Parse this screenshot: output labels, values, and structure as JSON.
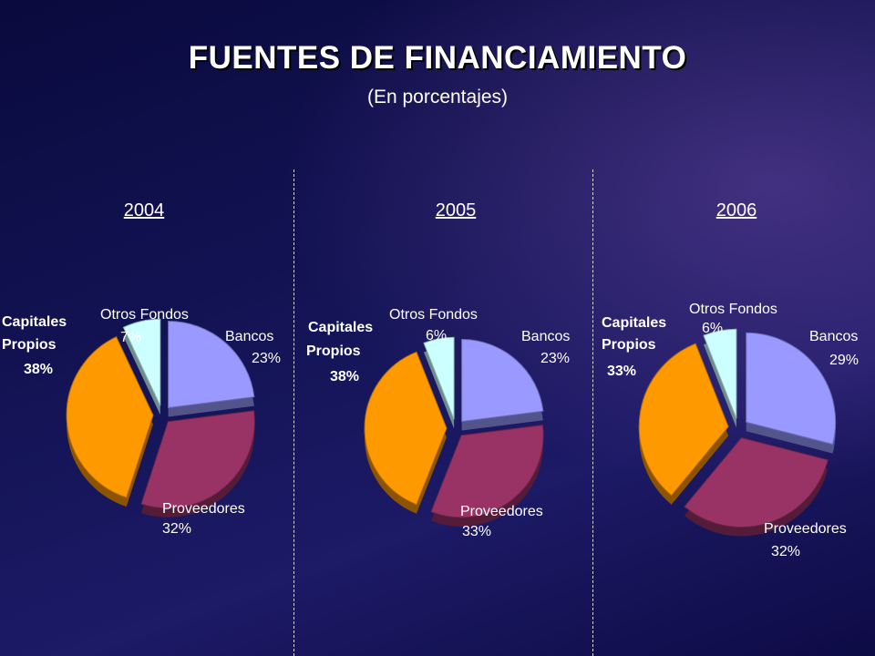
{
  "title": "FUENTES DE FINANCIAMIENTO",
  "subtitle": "(En porcentajes)",
  "chart_data": [
    {
      "type": "pie",
      "title": "2004",
      "slices": [
        {
          "label": "Bancos",
          "value": 23,
          "value_label": "23%",
          "color": "#9999ff"
        },
        {
          "label": "Proveedores",
          "value": 32,
          "value_label": "32%",
          "color": "#993366"
        },
        {
          "label": "Capitales Propios",
          "value": 38,
          "value_label": "38%",
          "color": "#ff9900"
        },
        {
          "label": "Otros Fondos",
          "value": 7,
          "value_label": "7%",
          "color": "#ccffff"
        }
      ]
    },
    {
      "type": "pie",
      "title": "2005",
      "slices": [
        {
          "label": "Bancos",
          "value": 23,
          "value_label": "23%",
          "color": "#9999ff"
        },
        {
          "label": "Proveedores",
          "value": 33,
          "value_label": "33%",
          "color": "#993366"
        },
        {
          "label": "Capitales Propios",
          "value": 38,
          "value_label": "38%",
          "color": "#ff9900"
        },
        {
          "label": "Otros Fondos",
          "value": 6,
          "value_label": "6%",
          "color": "#ccffff"
        }
      ]
    },
    {
      "type": "pie",
      "title": "2006",
      "slices": [
        {
          "label": "Bancos",
          "value": 29,
          "value_label": "29%",
          "color": "#9999ff"
        },
        {
          "label": "Proveedores",
          "value": 32,
          "value_label": "32%",
          "color": "#993366"
        },
        {
          "label": "Capitales Propios",
          "value": 33,
          "value_label": "33%",
          "color": "#ff9900"
        },
        {
          "label": "Otros Fondos",
          "value": 6,
          "value_label": "6%",
          "color": "#ccffff"
        }
      ]
    }
  ]
}
